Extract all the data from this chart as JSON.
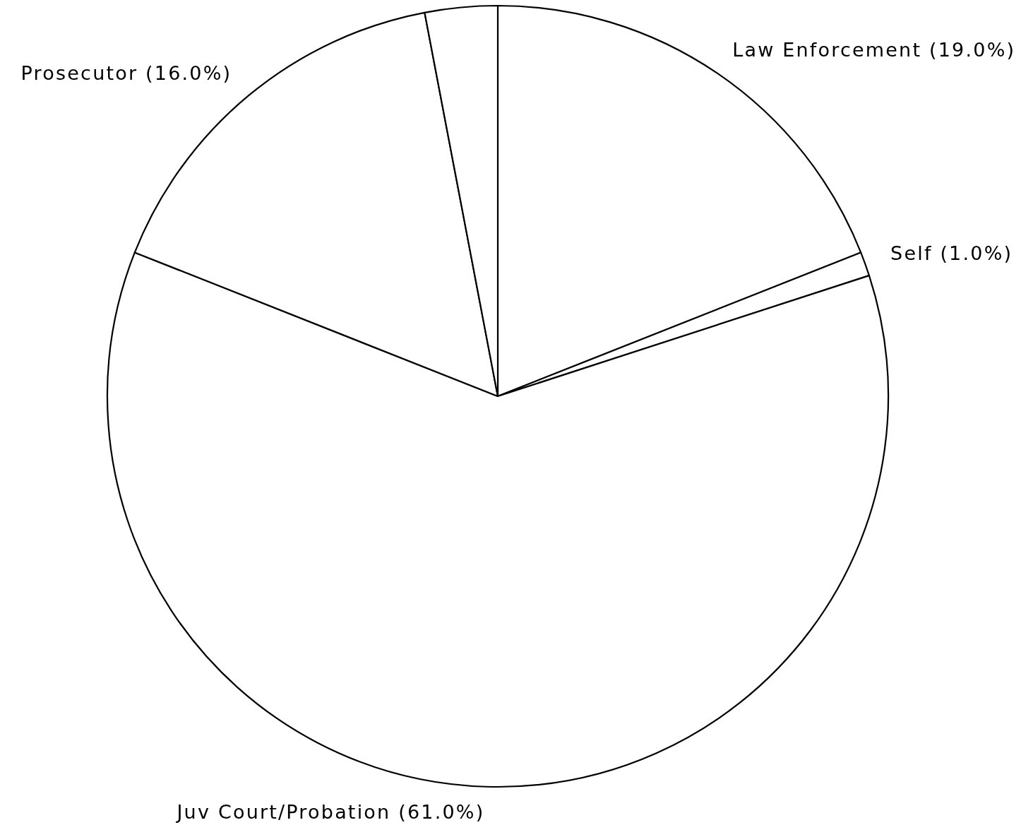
{
  "chart_data": {
    "type": "pie",
    "categories": [
      "Law Enforcement",
      "Self",
      "Juv Court/Probation",
      "Prosecutor",
      null
    ],
    "values": [
      19,
      1,
      61,
      16,
      3
    ],
    "value_labels": [
      "(19.0%)",
      "(1.0%)",
      "(61.0%)",
      "(16.0%)",
      null
    ],
    "colors": [
      "#ffffff",
      "#ffffff",
      "#ffffff",
      "#ffffff",
      "#ffffff"
    ]
  }
}
